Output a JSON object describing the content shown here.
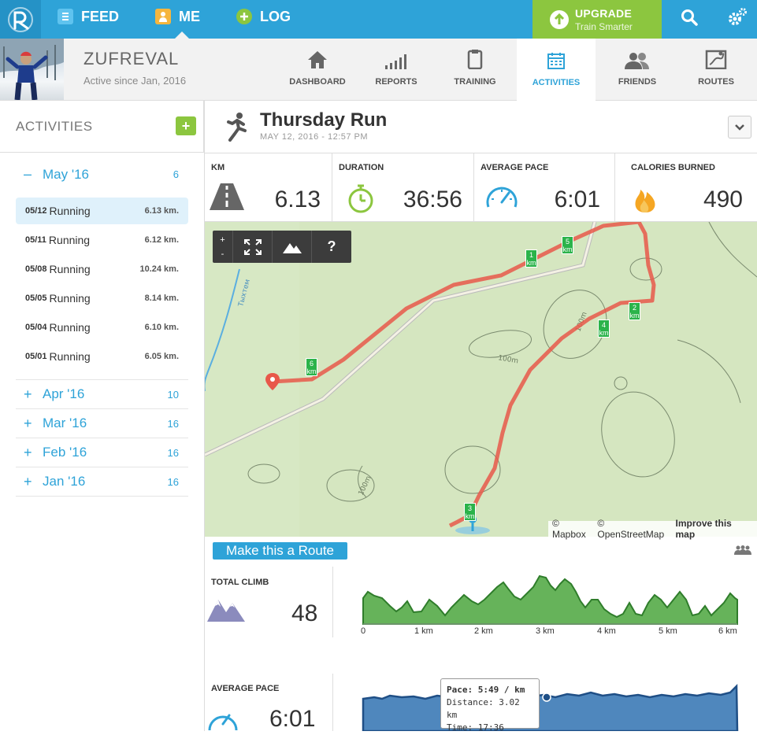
{
  "nav": {
    "feed_label": "FEED",
    "me_label": "ME",
    "log_label": "LOG",
    "upgrade_title": "UPGRADE",
    "upgrade_subtitle": "Train Smarter"
  },
  "profile": {
    "username": "ZUFREVAL",
    "active_since": "Active since Jan, 2016"
  },
  "tabs": [
    {
      "label": "DASHBOARD",
      "icon": "home-icon"
    },
    {
      "label": "REPORTS",
      "icon": "bar-chart-icon"
    },
    {
      "label": "TRAINING",
      "icon": "clipboard-icon"
    },
    {
      "label": "ACTIVITIES",
      "icon": "calendar-icon",
      "active": true
    },
    {
      "label": "FRIENDS",
      "icon": "friends-icon"
    },
    {
      "label": "ROUTES",
      "icon": "route-map-icon"
    }
  ],
  "sidebar": {
    "title": "ACTIVITIES",
    "add_label": "+",
    "current_month": {
      "sign": "–",
      "name": "May '16",
      "count": "6"
    },
    "activities": [
      {
        "date": "05/12",
        "name": "Running",
        "km": "6.13 km."
      },
      {
        "date": "05/11",
        "name": "Running",
        "km": "6.12 km."
      },
      {
        "date": "05/08",
        "name": "Running",
        "km": "10.24 km."
      },
      {
        "date": "05/05",
        "name": "Running",
        "km": "8.14 km."
      },
      {
        "date": "05/04",
        "name": "Running",
        "km": "6.10 km."
      },
      {
        "date": "05/01",
        "name": "Running",
        "km": "6.05 km."
      }
    ],
    "months": [
      {
        "sign": "+",
        "name": "Apr '16",
        "count": "10"
      },
      {
        "sign": "+",
        "name": "Mar '16",
        "count": "16"
      },
      {
        "sign": "+",
        "name": "Feb '16",
        "count": "16"
      },
      {
        "sign": "+",
        "name": "Jan '16",
        "count": "16"
      }
    ]
  },
  "activity": {
    "title": "Thursday Run",
    "datetime": "MAY 12, 2016 - 12:57 PM"
  },
  "stats": [
    {
      "label": "KM",
      "value": "6.13",
      "icon": "road-icon"
    },
    {
      "label": "DURATION",
      "value": "36:56",
      "icon": "stopwatch-icon"
    },
    {
      "label": "AVERAGE PACE",
      "value": "6:01",
      "icon": "speedometer-icon"
    },
    {
      "label": "CALORIES BURNED",
      "value": "490",
      "icon": "flame-icon"
    }
  ],
  "map": {
    "controls": {
      "zoom_in": "+",
      "zoom_out": "-",
      "help": "?"
    },
    "markers": [
      "1",
      "2",
      "3",
      "4",
      "5",
      "6"
    ],
    "marker_unit": "km",
    "contour_labels": [
      "100m",
      "100m",
      "100m"
    ],
    "stream_label": "Тыхтем",
    "attribution": {
      "mapbox": "© Mapbox",
      "osm": "© OpenStreetMap",
      "improve": "Improve this map"
    }
  },
  "route_button": "Make this a Route",
  "climb": {
    "label": "TOTAL CLIMB",
    "value": "48",
    "ticks": [
      "0",
      "1 km",
      "2 km",
      "3 km",
      "4 km",
      "5 km",
      "6 km"
    ]
  },
  "pace": {
    "label": "AVERAGE PACE",
    "value": "6:01",
    "tooltip": {
      "pace": "Pace: 5:49 / km",
      "distance": "Distance: 3.02 km",
      "time": "Time: 17:36"
    }
  },
  "colors": {
    "primary": "#2ea3d8",
    "accent_green": "#8cc63f",
    "route": "#e8584a",
    "marker": "#2bb34a"
  }
}
